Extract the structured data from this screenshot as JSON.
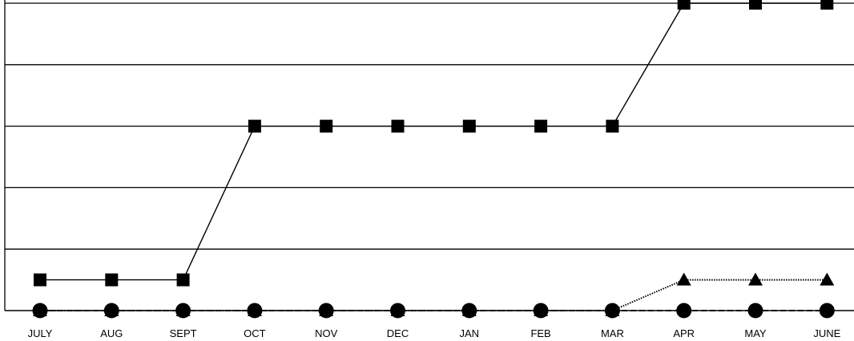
{
  "chart_data": {
    "type": "line",
    "categories": [
      "JULY",
      "AUG",
      "SEPT",
      "OCT",
      "NOV",
      "DEC",
      "JAN",
      "FEB",
      "MAR",
      "APR",
      "MAY",
      "JUNE"
    ],
    "ylim": [
      0,
      5
    ],
    "grid": true,
    "legend": "none",
    "series": [
      {
        "marker": "square",
        "line_style": "solid",
        "color": "#000000",
        "values": [
          0.5,
          0.5,
          0.5,
          3,
          3,
          3,
          3,
          3,
          3,
          5,
          5,
          5
        ]
      },
      {
        "marker": "triangle",
        "line_style": "dotted",
        "color": "#000000",
        "values": [
          0,
          0,
          0,
          0,
          0,
          0,
          0,
          0,
          0,
          0.5,
          0.5,
          0.5
        ]
      },
      {
        "marker": "circle",
        "line_style": "dashed",
        "color": "#000000",
        "values": [
          0,
          0,
          0,
          0,
          0,
          0,
          0,
          0,
          0,
          0,
          0,
          0
        ]
      }
    ]
  }
}
